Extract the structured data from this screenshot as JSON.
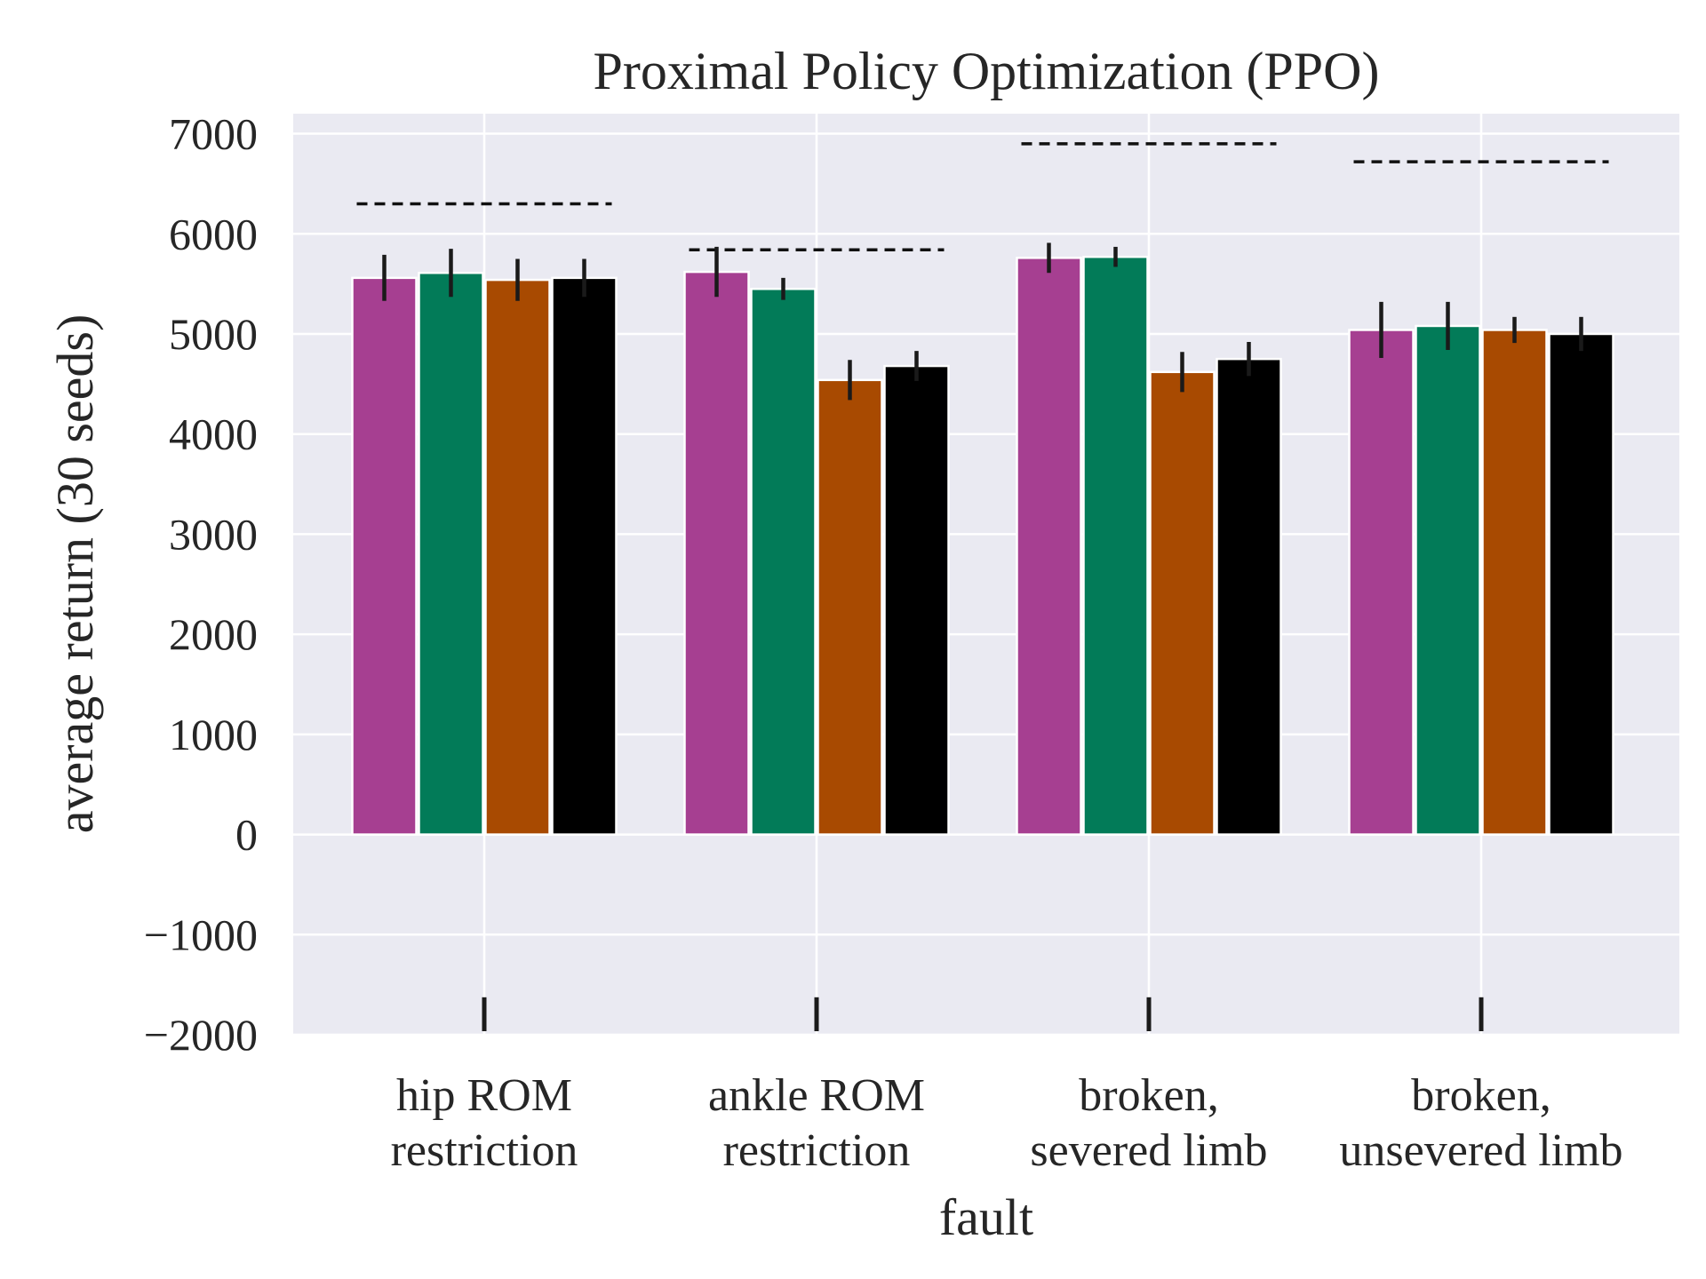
{
  "chart_data": {
    "type": "bar",
    "title": "Proximal Policy Optimization (PPO)",
    "xlabel": "fault",
    "ylabel": "average return (30 seeds)",
    "ylim": [
      -2000,
      7200
    ],
    "yticks": [
      -2000,
      -1000,
      0,
      1000,
      2000,
      3000,
      4000,
      5000,
      6000,
      7000
    ],
    "ytick_labels": [
      "−2000",
      "−1000",
      "0",
      "1000",
      "2000",
      "3000",
      "4000",
      "5000",
      "6000",
      "7000"
    ],
    "categories": [
      [
        "hip ROM",
        "restriction"
      ],
      [
        "ankle ROM",
        "restriction"
      ],
      [
        "broken,",
        "severed limb"
      ],
      [
        "broken,",
        "unsevered limb"
      ]
    ],
    "grid": true,
    "background": "#eaeaf2",
    "series": [
      {
        "color": "#a63f91",
        "values": [
          5560,
          5620,
          5760,
          5040
        ],
        "errors": [
          230,
          250,
          150,
          280
        ]
      },
      {
        "color": "#027b58",
        "values": [
          5610,
          5450,
          5770,
          5080
        ],
        "errors": [
          240,
          110,
          100,
          240
        ]
      },
      {
        "color": "#a84a01",
        "values": [
          5540,
          4540,
          4620,
          5040
        ],
        "errors": [
          210,
          200,
          200,
          130
        ]
      },
      {
        "color": "#000000",
        "values": [
          5560,
          4680,
          4750,
          5000
        ],
        "errors": [
          190,
          150,
          170,
          170
        ]
      }
    ],
    "reference_lines": [
      6300,
      5840,
      6900,
      6720
    ],
    "reference_line_style": "dashed",
    "baseline_markers": {
      "value": -1750,
      "style": "error-bar-stub"
    }
  }
}
